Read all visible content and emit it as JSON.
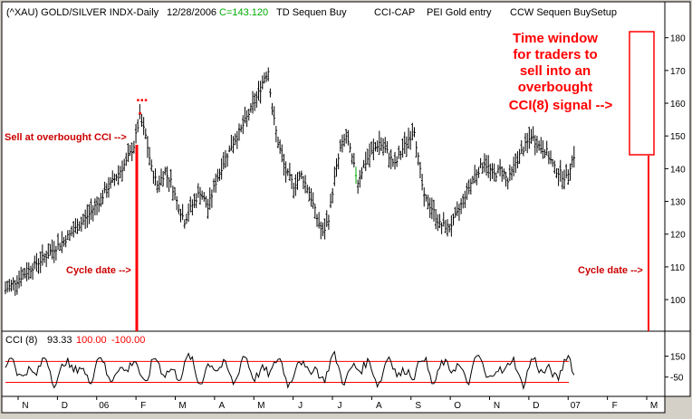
{
  "header": {
    "symbol": "(^XAU) GOLD/SILVER INDX-Daily",
    "date": "12/28/2006",
    "close": "C=143.120",
    "study1": "TD Sequen Buy",
    "study2": "CCI-CAP",
    "study3": "PEI Gold entry",
    "study4": "CCW Sequen BuySetup"
  },
  "annotations": {
    "sell": "Sell at overbought CCI -->",
    "cycle_left": "Cycle date -->",
    "cycle_right": "Cycle date -->",
    "window_lines": [
      "Time window",
      "for traders to",
      "sell into an",
      "overbought",
      "CCI(8) signal -->"
    ]
  },
  "cci_header": {
    "label": "CCI (8)",
    "value": "93.33",
    "upper": "100.00",
    "lower": "-100.00"
  },
  "colors": {
    "background": "#ffffff",
    "frame": "#d4d0c8",
    "bars": "#000000",
    "accent": "#ff0000",
    "close": "#00aa00"
  },
  "chart_data": [
    {
      "type": "ohlc",
      "ylim": [
        92,
        186
      ],
      "yticks": [
        100,
        110,
        120,
        130,
        140,
        150,
        160,
        170,
        180
      ],
      "x_tick_labels": [
        "N",
        "D",
        "06",
        "F",
        "M",
        "A",
        "M",
        "J",
        "J",
        "A",
        "S",
        "O",
        "N",
        "D",
        "07",
        "F",
        "M"
      ],
      "close_path": [
        [
          0,
          103
        ],
        [
          8,
          107
        ],
        [
          18,
          112
        ],
        [
          30,
          118
        ],
        [
          40,
          124
        ],
        [
          48,
          130
        ],
        [
          55,
          136
        ],
        [
          62,
          142
        ],
        [
          66,
          147
        ],
        [
          69,
          156
        ],
        [
          72,
          150
        ],
        [
          75,
          140
        ],
        [
          78,
          135
        ],
        [
          82,
          139
        ],
        [
          85,
          136
        ],
        [
          88,
          130
        ],
        [
          92,
          124
        ],
        [
          96,
          129
        ],
        [
          100,
          133
        ],
        [
          104,
          128
        ],
        [
          108,
          136
        ],
        [
          112,
          142
        ],
        [
          116,
          147
        ],
        [
          121,
          152
        ],
        [
          126,
          158
        ],
        [
          130,
          163
        ],
        [
          133,
          168
        ],
        [
          135,
          170
        ],
        [
          137,
          158
        ],
        [
          140,
          148
        ],
        [
          144,
          139
        ],
        [
          148,
          135
        ],
        [
          152,
          138
        ],
        [
          156,
          133
        ],
        [
          160,
          125
        ],
        [
          163,
          120
        ],
        [
          166,
          125
        ],
        [
          169,
          137
        ],
        [
          172,
          146
        ],
        [
          175,
          150
        ],
        [
          178,
          143
        ],
        [
          181,
          136
        ],
        [
          184,
          141
        ],
        [
          188,
          145
        ],
        [
          192,
          148
        ],
        [
          196,
          145
        ],
        [
          200,
          141
        ],
        [
          204,
          146
        ],
        [
          208,
          150
        ],
        [
          210,
          152
        ],
        [
          212,
          143
        ],
        [
          215,
          131
        ],
        [
          219,
          128
        ],
        [
          223,
          123
        ],
        [
          228,
          122
        ],
        [
          232,
          126
        ],
        [
          236,
          132
        ],
        [
          241,
          138
        ],
        [
          246,
          142
        ],
        [
          251,
          138
        ],
        [
          255,
          140
        ],
        [
          258,
          136
        ],
        [
          262,
          142
        ],
        [
          266,
          146
        ],
        [
          270,
          150
        ],
        [
          274,
          147
        ],
        [
          278,
          145
        ],
        [
          282,
          140
        ],
        [
          286,
          138
        ],
        [
          288,
          137
        ],
        [
          290,
          141
        ],
        [
          292,
          144
        ]
      ],
      "markers": [
        [
          68,
          161
        ],
        [
          70,
          161
        ],
        [
          72,
          161
        ],
        [
          69,
          157
        ]
      ]
    },
    {
      "type": "line",
      "name": "CCI (8)",
      "levels": [
        100,
        -100
      ],
      "ytick_labels": [
        "150",
        "-50"
      ],
      "ylim": [
        -200,
        250
      ]
    }
  ]
}
